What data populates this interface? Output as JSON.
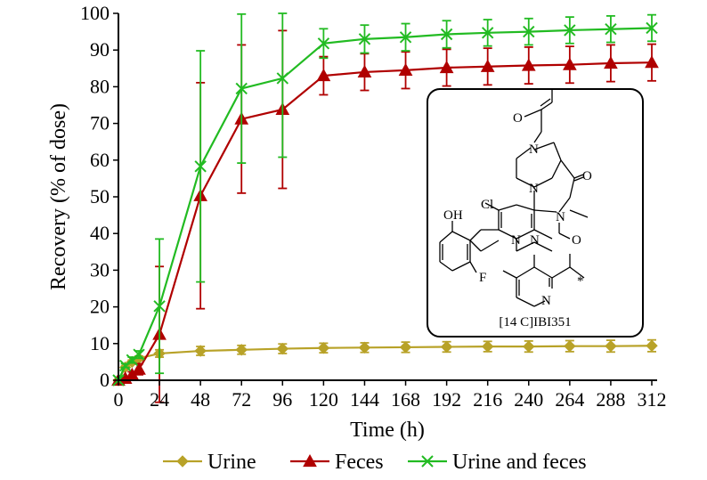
{
  "chart_data": {
    "type": "line",
    "xlabel": "Time (h)",
    "ylabel": "Recovery (% of dose)",
    "xlim": [
      0,
      312
    ],
    "ylim": [
      0,
      100
    ],
    "xticks": [
      0,
      24,
      48,
      72,
      96,
      120,
      144,
      168,
      192,
      216,
      240,
      264,
      288,
      312
    ],
    "yticks": [
      0,
      10,
      20,
      30,
      40,
      50,
      60,
      70,
      80,
      90,
      100
    ],
    "grid": false,
    "legend_position": "bottom",
    "x": [
      0,
      4,
      8,
      12,
      24,
      48,
      72,
      96,
      120,
      144,
      168,
      192,
      216,
      240,
      264,
      288,
      312
    ],
    "series": [
      {
        "name": "Urine",
        "color": "#b8a228",
        "marker": "diamond",
        "values": [
          0,
          3.5,
          5.0,
          6.0,
          7.3,
          8.0,
          8.3,
          8.6,
          8.8,
          8.9,
          9.0,
          9.1,
          9.2,
          9.2,
          9.3,
          9.3,
          9.4
        ],
        "errors": [
          0,
          0.4,
          0.5,
          0.6,
          1.0,
          1.2,
          1.2,
          1.3,
          1.3,
          1.3,
          1.4,
          1.4,
          1.4,
          1.5,
          1.5,
          1.6,
          1.6
        ]
      },
      {
        "name": "Feces",
        "color": "#b00000",
        "marker": "triangle",
        "values": [
          0,
          0.5,
          1.5,
          3.0,
          12.5,
          50.3,
          71.2,
          73.8,
          83.0,
          84.0,
          84.5,
          85.2,
          85.5,
          85.8,
          86.0,
          86.4,
          86.6
        ],
        "errors": [
          0,
          0.3,
          0.8,
          1.5,
          18.5,
          30.8,
          20.2,
          21.5,
          5.2,
          5.0,
          5.0,
          5.0,
          5.0,
          5.0,
          5.0,
          5.0,
          5.0
        ]
      },
      {
        "name": "Urine and feces",
        "color": "#22bb22",
        "marker": "x",
        "values": [
          0,
          4.0,
          5.5,
          7.0,
          20.2,
          58.3,
          79.5,
          82.3,
          91.8,
          93.0,
          93.5,
          94.3,
          94.7,
          95.0,
          95.4,
          95.7,
          96.0
        ],
        "errors": [
          0,
          0.5,
          0.8,
          1.0,
          18.3,
          31.5,
          20.3,
          21.5,
          4.0,
          3.8,
          3.7,
          3.7,
          3.6,
          3.6,
          3.6,
          3.6,
          3.6
        ]
      }
    ],
    "inset": {
      "caption": "[14 C]IBI351",
      "atom_labels": [
        "O",
        "N",
        "N",
        "O",
        "N",
        "Cl",
        "OH",
        "N",
        "N",
        "O",
        "F",
        "N",
        "*"
      ]
    }
  }
}
